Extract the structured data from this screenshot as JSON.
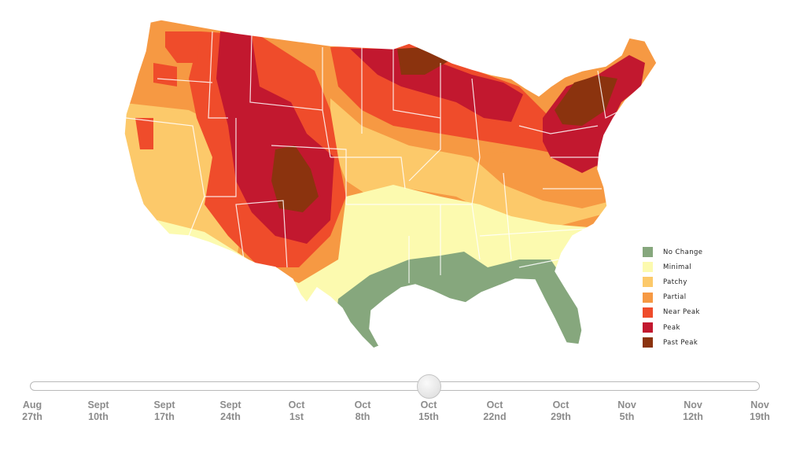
{
  "map": {
    "colors": {
      "no_change": "#86a77d",
      "minimal": "#fcfaaf",
      "patchy": "#fcc96a",
      "partial": "#f69943",
      "near_peak": "#ef4c2b",
      "peak": "#c2182f",
      "past_peak": "#8b330e"
    }
  },
  "legend": {
    "items": [
      {
        "label": "No Change",
        "color": "#86a77d"
      },
      {
        "label": "Minimal",
        "color": "#fcfaaf"
      },
      {
        "label": "Patchy",
        "color": "#fcc96a"
      },
      {
        "label": "Partial",
        "color": "#f69943"
      },
      {
        "label": "Near Peak",
        "color": "#ef4c2b"
      },
      {
        "label": "Peak",
        "color": "#c2182f"
      },
      {
        "label": "Past Peak",
        "color": "#8b330e"
      }
    ]
  },
  "slider": {
    "selected_index": 6,
    "ticks": [
      {
        "month": "Aug",
        "day": "27th"
      },
      {
        "month": "Sept",
        "day": "10th"
      },
      {
        "month": "Sept",
        "day": "17th"
      },
      {
        "month": "Sept",
        "day": "24th"
      },
      {
        "month": "Oct",
        "day": "1st"
      },
      {
        "month": "Oct",
        "day": "8th"
      },
      {
        "month": "Oct",
        "day": "15th"
      },
      {
        "month": "Oct",
        "day": "22nd"
      },
      {
        "month": "Oct",
        "day": "29th"
      },
      {
        "month": "Nov",
        "day": "5th"
      },
      {
        "month": "Nov",
        "day": "12th"
      },
      {
        "month": "Nov",
        "day": "19th"
      }
    ]
  }
}
